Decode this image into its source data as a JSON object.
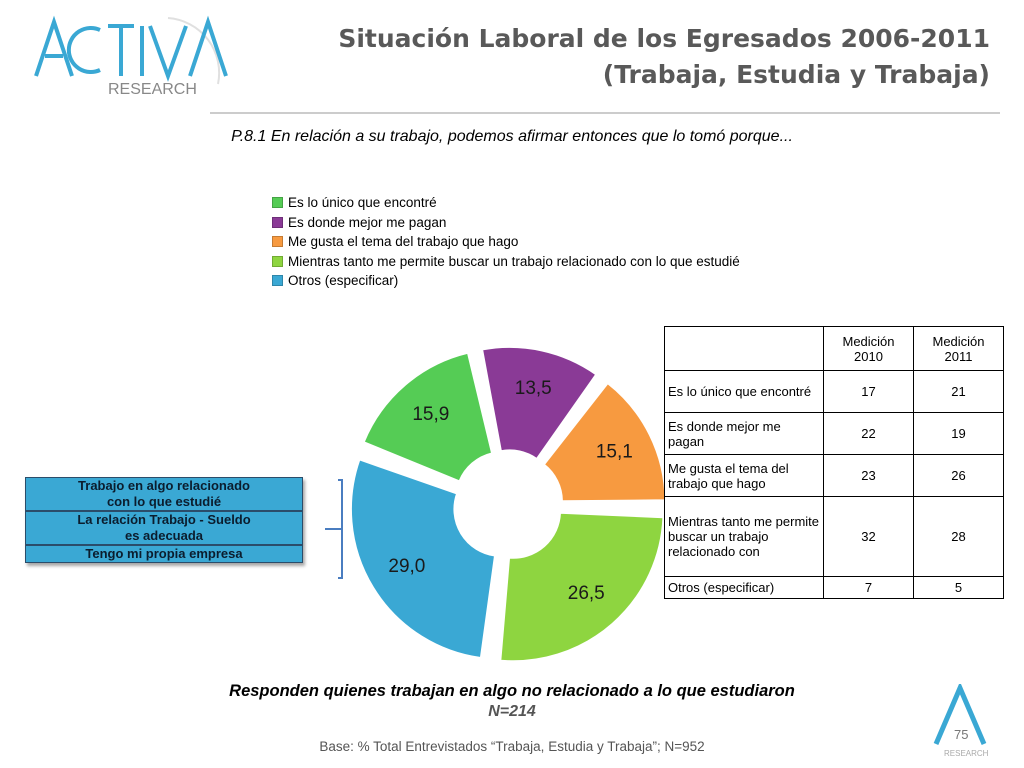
{
  "header": {
    "logo_main": "ACTIVA",
    "logo_sub": "RESEARCH",
    "title_line1": "Situación Laboral de los Egresados 2006-2011",
    "title_line2": "(Trabaja, Estudia y Trabaja)"
  },
  "question": "P.8.1 En relación a su trabajo, podemos afirmar entonces que lo tomó porque...",
  "chart_data": {
    "type": "pie",
    "style": "exploded-donut",
    "categories": [
      "Es lo único que encontré",
      "Es donde mejor me pagan",
      "Me gusta el tema del trabajo que hago",
      "Mientras tanto me permite buscar un trabajo relacionado con lo que estudié",
      "Otros (especificar)"
    ],
    "values": [
      15.9,
      13.5,
      15.1,
      26.5,
      29.0
    ],
    "value_labels": [
      "15,9",
      "13,5",
      "15,1",
      "26,5",
      "29,0"
    ],
    "colors": [
      "#55cc55",
      "#8a3a96",
      "#f79a40",
      "#8ed540",
      "#3aa8d4"
    ],
    "legend_position": "top"
  },
  "side_box": {
    "rows": [
      [
        "Trabajo en algo relacionado",
        "con lo que estudié"
      ],
      [
        "La relación Trabajo  - Sueldo",
        "es adecuada"
      ],
      [
        "Tengo mi propia empresa"
      ]
    ]
  },
  "table": {
    "headers": [
      [
        "Medición",
        "2010"
      ],
      [
        "Medición",
        "2011"
      ]
    ],
    "rows": [
      {
        "label": "Es lo único que encontré",
        "v2010": "17",
        "v2011": "21"
      },
      {
        "label": "Es donde mejor me pagan",
        "v2010": "22",
        "v2011": "19"
      },
      {
        "label": "Me gusta el tema del trabajo que hago",
        "v2010": "23",
        "v2011": "26"
      },
      {
        "label": "Mientras tanto me permite buscar un trabajo relacionado con",
        "v2010": "32",
        "v2011": "28"
      },
      {
        "label": "Otros (especificar)",
        "v2010": "7",
        "v2011": "5"
      }
    ]
  },
  "footer": {
    "note": "Responden quienes trabajan en algo no relacionado a lo que estudiaron",
    "n": "N=214",
    "base": "Base: % Total Entrevistados “Trabaja, Estudia y Trabaja”; N=952",
    "page_number": "75",
    "small_logo": "RESEARCH"
  }
}
